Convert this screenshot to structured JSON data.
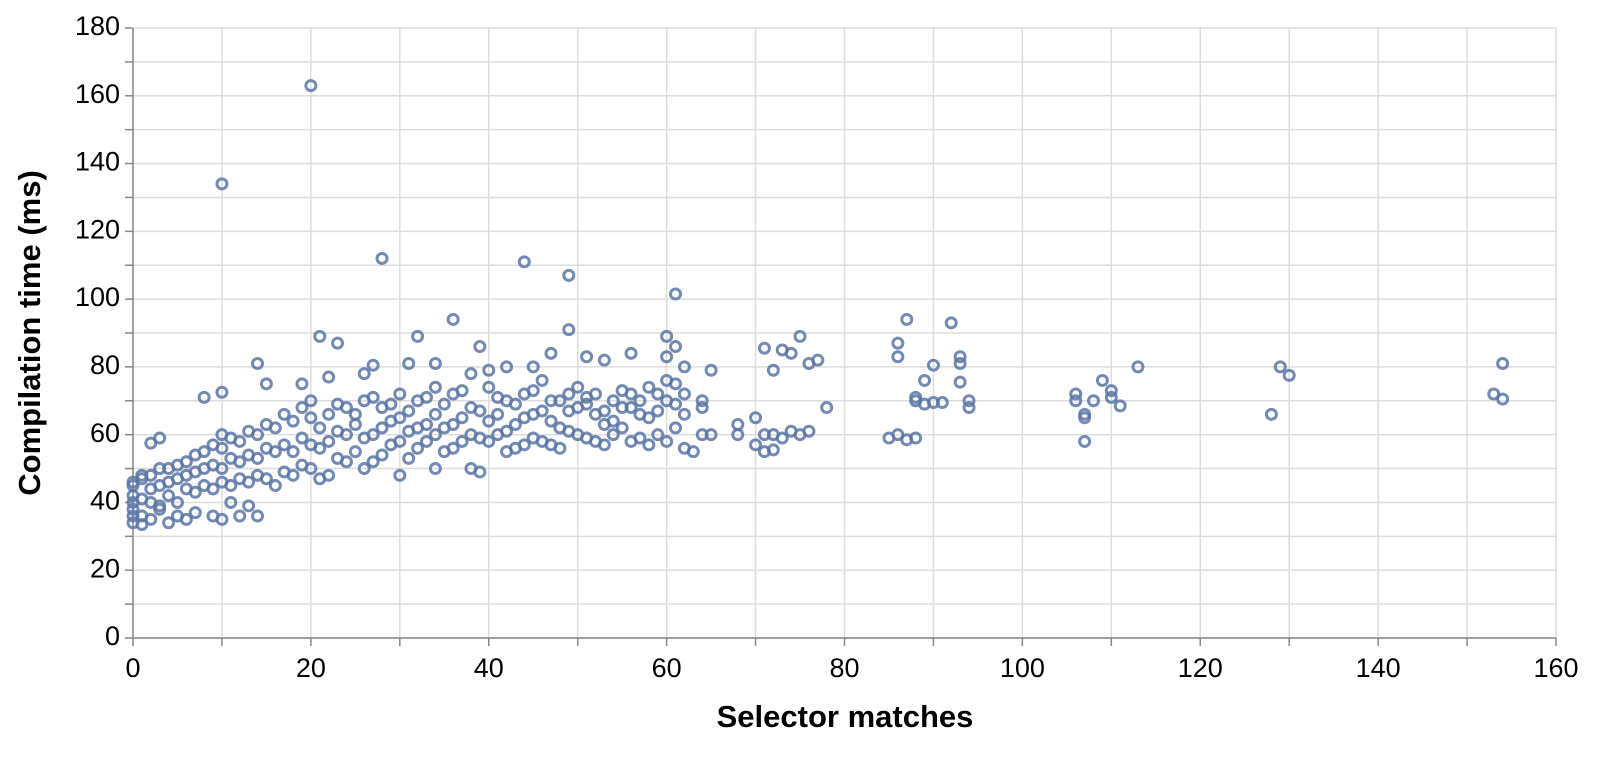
{
  "chart_data": {
    "type": "scatter",
    "x_label": "Selector matches",
    "y_label": "Compilation time (ms)",
    "color": "#5a76a4",
    "grid": true,
    "xlim": [
      0,
      160
    ],
    "ylim": [
      0,
      180
    ],
    "xticks": [
      0,
      {
        "value": 10,
        "label": null
      },
      20,
      {
        "value": 30,
        "label": null
      },
      40,
      {
        "value": 50,
        "label": null
      },
      60,
      {
        "value": 70,
        "label": null
      },
      80,
      {
        "value": 90,
        "label": null
      },
      100,
      {
        "value": 110,
        "label": null
      },
      120,
      {
        "value": 130,
        "label": null
      },
      140,
      {
        "value": 150,
        "label": null
      },
      160
    ],
    "yticks": [
      0,
      {
        "value": 10,
        "label": null
      },
      20,
      {
        "value": 30,
        "label": null
      },
      40,
      {
        "value": 50,
        "label": null
      },
      60,
      {
        "value": 70,
        "label": null
      },
      80,
      {
        "value": 90,
        "label": null
      },
      100,
      {
        "value": 110,
        "label": null
      },
      120,
      {
        "value": 130,
        "label": null
      },
      140,
      {
        "value": 150,
        "label": null
      },
      160,
      {
        "value": 170,
        "label": null
      },
      180
    ],
    "x": [
      10,
      20,
      28,
      44,
      49,
      61,
      36,
      49,
      60,
      21,
      32,
      23,
      39,
      61,
      87,
      92,
      75,
      86,
      86,
      93,
      93,
      90,
      113,
      129,
      130,
      154,
      153,
      154,
      128,
      107,
      109,
      108,
      106,
      106,
      107,
      107,
      110,
      110,
      111,
      89,
      88,
      88,
      89,
      91,
      90,
      94,
      94,
      93,
      85,
      86,
      87,
      88,
      78,
      77,
      76,
      74,
      73,
      71,
      72,
      70,
      68,
      68,
      70,
      71,
      72,
      71,
      72,
      74,
      76,
      75,
      73,
      62,
      63,
      64,
      65,
      65,
      62,
      60,
      56,
      53,
      51,
      47,
      45,
      42,
      40,
      38,
      34,
      31,
      27,
      26,
      22,
      19,
      14,
      15,
      10,
      8,
      3,
      2,
      1,
      0,
      0,
      0,
      0,
      1,
      2,
      3,
      4,
      5,
      6,
      7,
      9,
      10,
      12,
      14,
      13,
      11,
      0,
      0,
      0,
      2,
      2,
      2,
      4,
      4,
      4,
      6,
      6,
      6,
      8,
      8,
      8,
      10,
      10,
      10,
      10,
      12,
      12,
      12,
      14,
      14,
      14,
      16,
      16,
      16,
      18,
      18,
      18,
      20,
      20,
      20,
      20,
      22,
      22,
      22,
      24,
      24,
      24,
      26,
      26,
      26,
      28,
      28,
      28,
      30,
      30,
      30,
      30,
      32,
      32,
      32,
      34,
      34,
      34,
      34,
      36,
      36,
      36,
      38,
      38,
      38,
      40,
      40,
      40,
      42,
      42,
      42,
      44,
      44,
      44,
      46,
      46,
      46,
      48,
      48,
      48,
      50,
      50,
      50,
      52,
      52,
      52,
      54,
      54,
      54,
      56,
      56,
      56,
      58,
      58,
      58,
      60,
      60,
      60,
      62,
      62,
      64,
      64,
      1,
      1,
      1,
      3,
      3,
      3,
      5,
      5,
      5,
      7,
      7,
      7,
      9,
      9,
      9,
      11,
      11,
      11,
      13,
      13,
      13,
      15,
      15,
      15,
      17,
      17,
      17,
      19,
      19,
      19,
      21,
      21,
      21,
      23,
      23,
      23,
      25,
      25,
      25,
      27,
      27,
      27,
      29,
      29,
      29,
      31,
      31,
      31,
      33,
      33,
      33,
      35,
      35,
      35,
      37,
      37,
      37,
      39,
      39,
      39,
      41,
      41,
      41,
      43,
      43,
      43,
      45,
      45,
      45,
      47,
      47,
      47,
      49,
      49,
      49,
      51,
      51,
      51,
      53,
      53,
      53,
      55,
      55,
      55,
      57,
      57,
      57,
      59,
      59,
      59,
      61,
      61,
      61
    ],
    "values": [
      134,
      163,
      112,
      111,
      107,
      101.5,
      94,
      91,
      89,
      89,
      89,
      87,
      86,
      86,
      94,
      93,
      89,
      87,
      83,
      83,
      81,
      80.5,
      80,
      80,
      77.5,
      81,
      72,
      70.5,
      66,
      58,
      76,
      70,
      72,
      70,
      66,
      65,
      73,
      71,
      68.5,
      76,
      71,
      70,
      69,
      69.5,
      69.5,
      70,
      68,
      75.5,
      59,
      60,
      58.5,
      59,
      68,
      82,
      81,
      84,
      85,
      85.5,
      79,
      65,
      63,
      60,
      57,
      55,
      55.5,
      60,
      60,
      61,
      61,
      60,
      59,
      56,
      55,
      60,
      60,
      79,
      80,
      83,
      84,
      82,
      83,
      84,
      80,
      80,
      79,
      78,
      81,
      81,
      80.5,
      78,
      77,
      75,
      81,
      75,
      72.5,
      71,
      59,
      57.5,
      48,
      46,
      40,
      36,
      34,
      33.5,
      35,
      38,
      34,
      36,
      35,
      37,
      36,
      35,
      36,
      36,
      39,
      40,
      38,
      42,
      45,
      40,
      44,
      48,
      42,
      46,
      50,
      44,
      48,
      52,
      45,
      50,
      55,
      46,
      50,
      56,
      60,
      47,
      52,
      58,
      48,
      53,
      60,
      45,
      55,
      62,
      48,
      55,
      64,
      50,
      57,
      65,
      70,
      48,
      58,
      66,
      52,
      60,
      68,
      50,
      59,
      70,
      54,
      62,
      68,
      48,
      58,
      65,
      72,
      56,
      62,
      70,
      50,
      60,
      66,
      74,
      56,
      63,
      72,
      50,
      60,
      68,
      58,
      64,
      74,
      55,
      61,
      70,
      57,
      65,
      72,
      58,
      67,
      76,
      56,
      62,
      70,
      60,
      68,
      74,
      58,
      66,
      72,
      60,
      64,
      70,
      58,
      68,
      72,
      57,
      65,
      74,
      58,
      70,
      76,
      66,
      72,
      68,
      70,
      36,
      41,
      47,
      39,
      45,
      50,
      40,
      47,
      51,
      43,
      49,
      54,
      44,
      51,
      57,
      45,
      53,
      59,
      46,
      54,
      61,
      47,
      56,
      63,
      49,
      57,
      66,
      51,
      59,
      68,
      47,
      56,
      62,
      53,
      61,
      69,
      55,
      63,
      66,
      52,
      60,
      71,
      57,
      64,
      69,
      53,
      61,
      67,
      58,
      63,
      71,
      55,
      62,
      69,
      58,
      65,
      73,
      49,
      59,
      67,
      60,
      66,
      71,
      56,
      63,
      69,
      59,
      66,
      73,
      57,
      64,
      70,
      61,
      67,
      72,
      59,
      69,
      71,
      57,
      63,
      67,
      62,
      68,
      73,
      59,
      66,
      70,
      60,
      67,
      72,
      62,
      69,
      75
    ]
  }
}
